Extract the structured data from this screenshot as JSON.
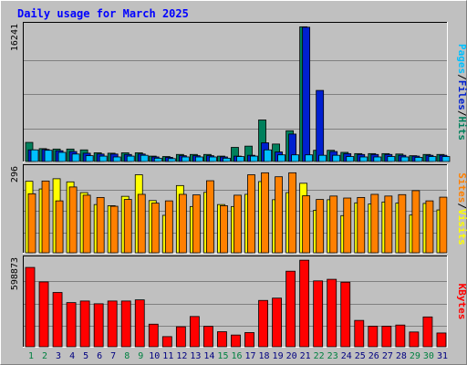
{
  "chart_data": [
    {
      "panel": "top",
      "type": "bar",
      "title": "Daily usage for March 2025",
      "ymax_label": "16241",
      "ylim": [
        0,
        16241
      ],
      "grid": true,
      "legend": {
        "position": "right",
        "items": [
          {
            "name": "Pages",
            "color": "#00c0ff"
          },
          {
            "name": "Files",
            "color": "#0020d0"
          },
          {
            "name": "Hits",
            "color": "#00805c"
          }
        ],
        "separators": [
          "/",
          "/"
        ]
      },
      "categories": [
        "1",
        "2",
        "3",
        "4",
        "5",
        "6",
        "7",
        "8",
        "9",
        "10",
        "11",
        "12",
        "13",
        "14",
        "15",
        "16",
        "17",
        "18",
        "19",
        "20",
        "21",
        "22",
        "23",
        "24",
        "25",
        "26",
        "27",
        "28",
        "29",
        "30",
        "31"
      ],
      "weekend_days": [
        "1",
        "2",
        "8",
        "9",
        "15",
        "16",
        "22",
        "23",
        "29",
        "30"
      ],
      "series": [
        {
          "name": "Hits",
          "values": [
            2300,
            1550,
            1500,
            1500,
            1400,
            1050,
            1000,
            1050,
            1050,
            650,
            600,
            850,
            850,
            850,
            650,
            1700,
            1850,
            5000,
            2100,
            3700,
            16200,
            1350,
            1350,
            1100,
            950,
            950,
            950,
            900,
            700,
            850,
            850
          ]
        },
        {
          "name": "Files",
          "values": [
            1400,
            1450,
            1300,
            1200,
            1000,
            900,
            900,
            850,
            900,
            550,
            500,
            700,
            700,
            700,
            550,
            650,
            750,
            2250,
            1150,
            3300,
            16150,
            8550,
            1200,
            950,
            850,
            850,
            850,
            750,
            650,
            750,
            750
          ]
        },
        {
          "name": "Pages",
          "values": [
            1400,
            1350,
            1100,
            900,
            700,
            650,
            550,
            650,
            750,
            400,
            350,
            550,
            550,
            550,
            400,
            600,
            650,
            1400,
            800,
            800,
            800,
            750,
            750,
            600,
            550,
            550,
            600,
            550,
            500,
            600,
            600
          ]
        }
      ]
    },
    {
      "panel": "middle",
      "type": "bar",
      "ymax_label": "296",
      "ylim": [
        0,
        296
      ],
      "grid": true,
      "legend": {
        "position": "right",
        "items": [
          {
            "name": "Sites",
            "color": "#ff8000"
          },
          {
            "name": "Visits",
            "color": "#ffff00"
          }
        ],
        "separators": [
          "/"
        ]
      },
      "categories": [
        "1",
        "2",
        "3",
        "4",
        "5",
        "6",
        "7",
        "8",
        "9",
        "10",
        "11",
        "12",
        "13",
        "14",
        "15",
        "16",
        "17",
        "18",
        "19",
        "20",
        "21",
        "22",
        "23",
        "24",
        "25",
        "26",
        "27",
        "28",
        "29",
        "30",
        "31"
      ],
      "series": [
        {
          "name": "Visits",
          "values": [
            252,
            225,
            261,
            250,
            212,
            170,
            166,
            199,
            275,
            184,
            132,
            237,
            163,
            213,
            170,
            163,
            206,
            251,
            187,
            212,
            245,
            150,
            187,
            131,
            176,
            172,
            179,
            175,
            133,
            174,
            151
          ]
        },
        {
          "name": "Sites",
          "values": [
            208,
            253,
            183,
            232,
            203,
            195,
            164,
            188,
            206,
            175,
            183,
            206,
            204,
            254,
            166,
            203,
            275,
            282,
            268,
            282,
            201,
            188,
            200,
            193,
            195,
            206,
            200,
            205,
            219,
            183,
            196
          ]
        }
      ]
    },
    {
      "panel": "bottom",
      "type": "bar",
      "ymax_label": "598873",
      "ylim": [
        0,
        598873
      ],
      "grid": true,
      "legend": {
        "position": "right",
        "items": [
          {
            "name": "KBytes",
            "color": "#ff0000"
          }
        ],
        "separators": []
      },
      "categories": [
        "1",
        "2",
        "3",
        "4",
        "5",
        "6",
        "7",
        "8",
        "9",
        "10",
        "11",
        "12",
        "13",
        "14",
        "15",
        "16",
        "17",
        "18",
        "19",
        "20",
        "21",
        "22",
        "23",
        "24",
        "25",
        "26",
        "27",
        "28",
        "29",
        "30",
        "31"
      ],
      "series": [
        {
          "name": "KBytes",
          "values": [
            548000,
            448000,
            375000,
            305000,
            316000,
            297000,
            316000,
            316000,
            324000,
            156000,
            70000,
            138000,
            209000,
            141000,
            104000,
            81000,
            98000,
            320000,
            336000,
            522000,
            598000,
            455000,
            466000,
            446000,
            182000,
            142000,
            142000,
            150000,
            102000,
            206000,
            95000
          ]
        }
      ]
    }
  ],
  "colors": {
    "background": "#c0c0c0",
    "frame": "#ffffff",
    "title": "#0000ff",
    "weekday_label": "#000080",
    "weekend_label": "#008040"
  }
}
